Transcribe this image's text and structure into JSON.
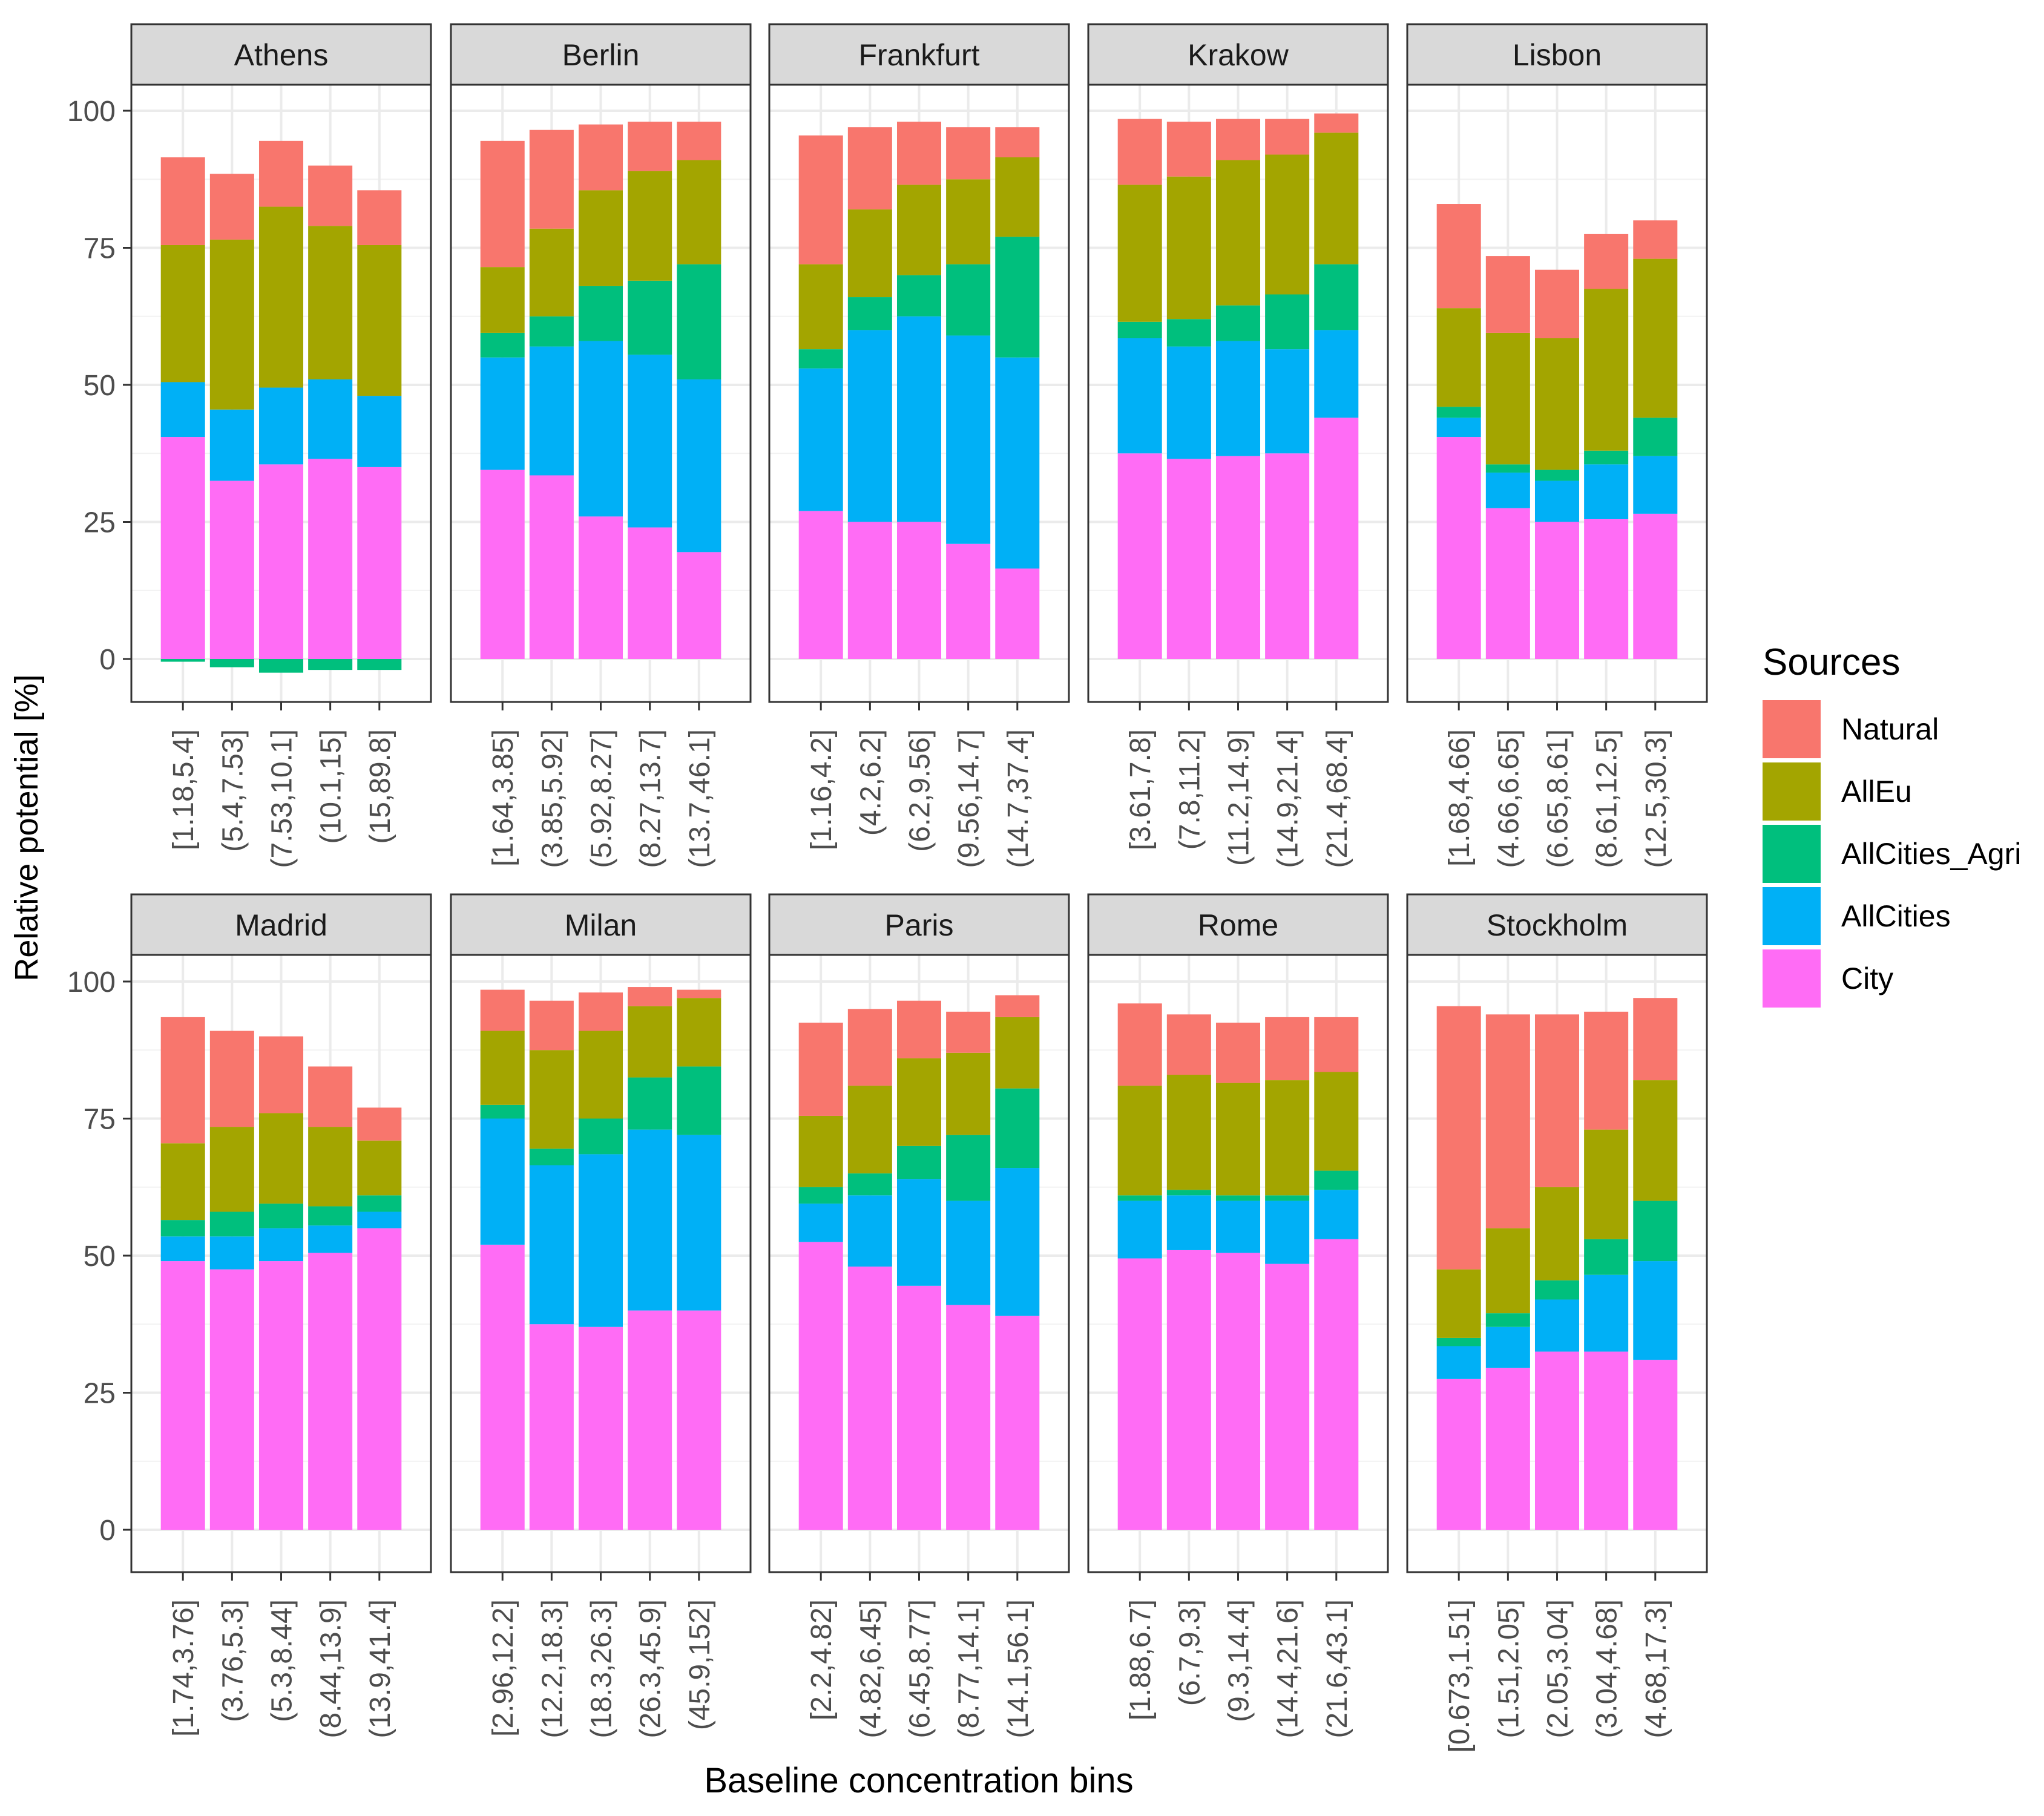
{
  "chart_data": {
    "type": "bar",
    "stacked": true,
    "xlabel": "Baseline concentration bins",
    "ylabel": "Relative potential [%]",
    "ylim": [
      -7,
      108
    ],
    "y_ticks": [
      0,
      25,
      50,
      75,
      100
    ],
    "grid": true,
    "legend": {
      "title": "Sources",
      "position": "right",
      "entries": [
        {
          "name": "Natural",
          "color": "#F8766D"
        },
        {
          "name": "AllEu",
          "color": "#A3A500"
        },
        {
          "name": "AllCities_Agri",
          "color": "#00BF7D"
        },
        {
          "name": "AllCities",
          "color": "#00B0F6"
        },
        {
          "name": "City",
          "color": "#FF6CF5"
        }
      ]
    },
    "stack_order": [
      "City",
      "AllCities",
      "AllCities_Agri",
      "AllEu",
      "Natural"
    ],
    "panels": [
      {
        "title": "Athens",
        "categories": [
          "[1.18,5.4]",
          "(5.4,7.53]",
          "(7.53,10.1]",
          "(10.1,15]",
          "(15,89.8]"
        ],
        "series": [
          {
            "name": "City",
            "values": [
              40.5,
              32.5,
              35.5,
              36.5,
              35
            ]
          },
          {
            "name": "AllCities",
            "values": [
              10,
              13,
              14,
              14.5,
              13
            ]
          },
          {
            "name": "AllCities_Agri",
            "values": [
              -0.5,
              -1.5,
              -2.5,
              -2,
              -2
            ]
          },
          {
            "name": "AllEu",
            "values": [
              25,
              31,
              33,
              28,
              27.5
            ]
          },
          {
            "name": "Natural",
            "values": [
              16,
              12,
              12,
              11,
              10
            ]
          }
        ]
      },
      {
        "title": "Berlin",
        "categories": [
          "[1.64,3.85]",
          "(3.85,5.92]",
          "(5.92,8.27]",
          "(8.27,13.7]",
          "(13.7,46.1]"
        ],
        "series": [
          {
            "name": "City",
            "values": [
              34.5,
              33.5,
              26,
              24,
              19.5
            ]
          },
          {
            "name": "AllCities",
            "values": [
              20.5,
              23.5,
              32,
              31.5,
              31.5
            ]
          },
          {
            "name": "AllCities_Agri",
            "values": [
              4.5,
              5.5,
              10,
              13.5,
              21
            ]
          },
          {
            "name": "AllEu",
            "values": [
              12,
              16,
              17.5,
              20,
              19
            ]
          },
          {
            "name": "Natural",
            "values": [
              23,
              18,
              12,
              9,
              7
            ]
          }
        ]
      },
      {
        "title": "Frankfurt",
        "categories": [
          "[1.16,4.2]",
          "(4.2,6.2]",
          "(6.2,9.56]",
          "(9.56,14.7]",
          "(14.7,37.4]"
        ],
        "series": [
          {
            "name": "City",
            "values": [
              27,
              25,
              25,
              21,
              16.5
            ]
          },
          {
            "name": "AllCities",
            "values": [
              26,
              35,
              37.5,
              38,
              38.5
            ]
          },
          {
            "name": "AllCities_Agri",
            "values": [
              3.5,
              6,
              7.5,
              13,
              22
            ]
          },
          {
            "name": "AllEu",
            "values": [
              15.5,
              16,
              16.5,
              15.5,
              14.5
            ]
          },
          {
            "name": "Natural",
            "values": [
              23.5,
              15,
              11.5,
              9.5,
              5.5
            ]
          }
        ]
      },
      {
        "title": "Krakow",
        "categories": [
          "[3.61,7.8]",
          "(7.8,11.2]",
          "(11.2,14.9]",
          "(14.9,21.4]",
          "(21.4,68.4]"
        ],
        "series": [
          {
            "name": "City",
            "values": [
              37.5,
              36.5,
              37,
              37.5,
              44
            ]
          },
          {
            "name": "AllCities",
            "values": [
              21,
              20.5,
              21,
              19,
              16
            ]
          },
          {
            "name": "AllCities_Agri",
            "values": [
              3,
              5,
              6.5,
              10,
              12
            ]
          },
          {
            "name": "AllEu",
            "values": [
              25,
              26,
              26.5,
              25.5,
              24
            ]
          },
          {
            "name": "Natural",
            "values": [
              12,
              10,
              7.5,
              6.5,
              3.5
            ]
          }
        ]
      },
      {
        "title": "Lisbon",
        "categories": [
          "[1.68,4.66]",
          "(4.66,6.65]",
          "(6.65,8.61]",
          "(8.61,12.5]",
          "(12.5,30.3]"
        ],
        "series": [
          {
            "name": "City",
            "values": [
              40.5,
              27.5,
              25,
              25.5,
              26.5
            ]
          },
          {
            "name": "AllCities",
            "values": [
              3.5,
              6.5,
              7.5,
              10,
              10.5
            ]
          },
          {
            "name": "AllCities_Agri",
            "values": [
              2,
              1.5,
              2,
              2.5,
              7
            ]
          },
          {
            "name": "AllEu",
            "values": [
              18,
              24,
              24,
              29.5,
              29
            ]
          },
          {
            "name": "Natural",
            "values": [
              19,
              14,
              12.5,
              10,
              7
            ]
          }
        ]
      },
      {
        "title": "Madrid",
        "categories": [
          "[1.74,3.76]",
          "(3.76,5.3]",
          "(5.3,8.44]",
          "(8.44,13.9]",
          "(13.9,41.4]"
        ],
        "series": [
          {
            "name": "City",
            "values": [
              49,
              47.5,
              49,
              50.5,
              55
            ]
          },
          {
            "name": "AllCities",
            "values": [
              4.5,
              6,
              6,
              5,
              3
            ]
          },
          {
            "name": "AllCities_Agri",
            "values": [
              3,
              4.5,
              4.5,
              3.5,
              3
            ]
          },
          {
            "name": "AllEu",
            "values": [
              14,
              15.5,
              16.5,
              14.5,
              10
            ]
          },
          {
            "name": "Natural",
            "values": [
              23,
              17.5,
              14,
              11,
              6
            ]
          }
        ]
      },
      {
        "title": "Milan",
        "categories": [
          "[2.96,12.2]",
          "(12.2,18.3]",
          "(18.3,26.3]",
          "(26.3,45.9]",
          "(45.9,152]"
        ],
        "series": [
          {
            "name": "City",
            "values": [
              52,
              37.5,
              37,
              40,
              40
            ]
          },
          {
            "name": "AllCities",
            "values": [
              23,
              29,
              31.5,
              33,
              32
            ]
          },
          {
            "name": "AllCities_Agri",
            "values": [
              2.5,
              3,
              6.5,
              9.5,
              12.5
            ]
          },
          {
            "name": "AllEu",
            "values": [
              13.5,
              18,
              16,
              13,
              12.5
            ]
          },
          {
            "name": "Natural",
            "values": [
              7.5,
              9,
              7,
              3.5,
              1.5
            ]
          }
        ]
      },
      {
        "title": "Paris",
        "categories": [
          "[2.2,4.82]",
          "(4.82,6.45]",
          "(6.45,8.77]",
          "(8.77,14.1]",
          "(14.1,56.1]"
        ],
        "series": [
          {
            "name": "City",
            "values": [
              52.5,
              48,
              44.5,
              41,
              39
            ]
          },
          {
            "name": "AllCities",
            "values": [
              7,
              13,
              19.5,
              19,
              27
            ]
          },
          {
            "name": "AllCities_Agri",
            "values": [
              3,
              4,
              6,
              12,
              14.5
            ]
          },
          {
            "name": "AllEu",
            "values": [
              13,
              16,
              16,
              15,
              13
            ]
          },
          {
            "name": "Natural",
            "values": [
              17,
              14,
              10.5,
              7.5,
              4
            ]
          }
        ]
      },
      {
        "title": "Rome",
        "categories": [
          "[1.88,6.7]",
          "(6.7,9.3]",
          "(9.3,14.4]",
          "(14.4,21.6]",
          "(21.6,43.1]"
        ],
        "series": [
          {
            "name": "City",
            "values": [
              49.5,
              51,
              50.5,
              48.5,
              53
            ]
          },
          {
            "name": "AllCities",
            "values": [
              10.5,
              10,
              9.5,
              11.5,
              9
            ]
          },
          {
            "name": "AllCities_Agri",
            "values": [
              1,
              1,
              1,
              1,
              3.5
            ]
          },
          {
            "name": "AllEu",
            "values": [
              20,
              21,
              20.5,
              21,
              18
            ]
          },
          {
            "name": "Natural",
            "values": [
              15,
              11,
              11,
              11.5,
              10
            ]
          }
        ]
      },
      {
        "title": "Stockholm",
        "categories": [
          "[0.673,1.51]",
          "(1.51,2.05]",
          "(2.05,3.04]",
          "(3.04,4.68]",
          "(4.68,17.3]"
        ],
        "series": [
          {
            "name": "City",
            "values": [
              27.5,
              29.5,
              32.5,
              32.5,
              31
            ]
          },
          {
            "name": "AllCities",
            "values": [
              6,
              7.5,
              9.5,
              14,
              18
            ]
          },
          {
            "name": "AllCities_Agri",
            "values": [
              1.5,
              2.5,
              3.5,
              6.5,
              11
            ]
          },
          {
            "name": "AllEu",
            "values": [
              12.5,
              15.5,
              17,
              20,
              22
            ]
          },
          {
            "name": "Natural",
            "values": [
              48,
              39,
              31.5,
              21.5,
              15
            ]
          }
        ]
      }
    ]
  }
}
